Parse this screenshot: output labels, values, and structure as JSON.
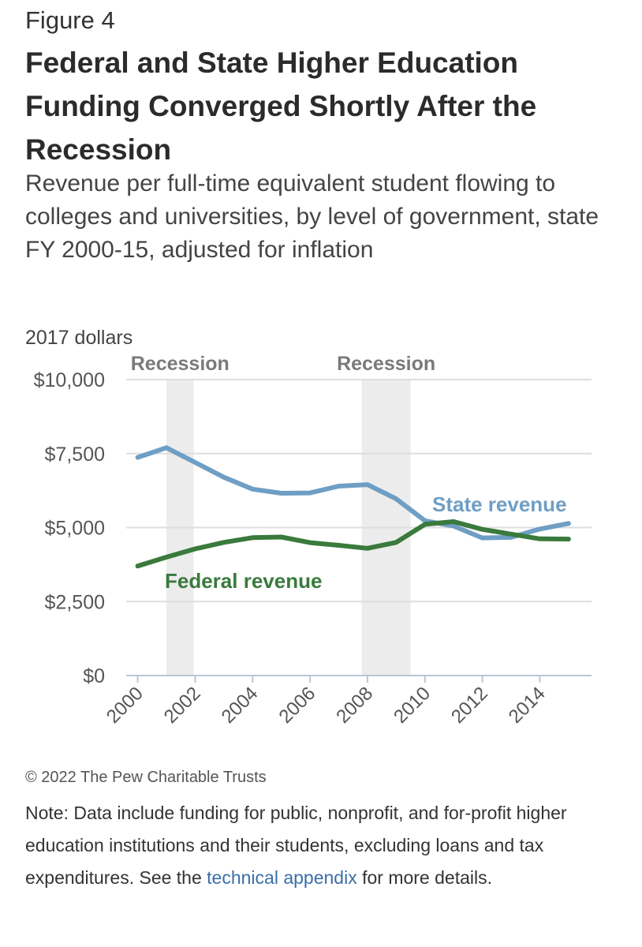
{
  "figure_label": "Figure 4",
  "title": "Federal and State Higher Education Funding Converged Shortly After the Recession",
  "subtitle": "Revenue per full-time equivalent student flowing to colleges and universities, by level of government, state FY 2000-15, adjusted for inflation",
  "unit_label": "2017 dollars",
  "copyright": "© 2022 The Pew Charitable Trusts",
  "note": {
    "before": "Note: Data include funding for public, nonprofit, and for-profit higher education institutions and their students, excluding loans and tax expenditures. See the ",
    "link": "technical appendix",
    "after": " for more details."
  },
  "chart_data": {
    "type": "line",
    "x": [
      2000,
      2001,
      2002,
      2003,
      2004,
      2005,
      2006,
      2007,
      2008,
      2009,
      2010,
      2011,
      2012,
      2013,
      2014,
      2015
    ],
    "series": [
      {
        "name": "State revenue",
        "color": "#6f9ec4",
        "values": [
          7370,
          7700,
          7200,
          6700,
          6300,
          6160,
          6170,
          6400,
          6450,
          5970,
          5230,
          5050,
          4650,
          4670,
          4950,
          5140
        ]
      },
      {
        "name": "Federal revenue",
        "color": "#3a7a3c",
        "values": [
          3700,
          4000,
          4280,
          4500,
          4660,
          4680,
          4490,
          4400,
          4300,
          4500,
          5110,
          5200,
          4940,
          4780,
          4620,
          4610
        ]
      }
    ],
    "xlim": [
      1999.6,
      2015.8
    ],
    "ylim": [
      0,
      10000
    ],
    "y_ticks": [
      0,
      2500,
      5000,
      7500,
      10000
    ],
    "y_tick_labels": [
      "$0",
      "$2,500",
      "$5,000",
      "$7,500",
      "$10,000"
    ],
    "x_ticks": [
      2000,
      2002,
      2004,
      2006,
      2008,
      2010,
      2012,
      2014
    ],
    "x_tick_labels": [
      "2000",
      "2002",
      "2004",
      "2006",
      "2008",
      "2010",
      "2012",
      "2014"
    ],
    "recessions": [
      {
        "label": "Recession",
        "start": 2001.0,
        "end": 2001.95
      },
      {
        "label": "Recession",
        "start": 2007.8,
        "end": 2009.5
      }
    ],
    "grid": true,
    "xlabel": "",
    "ylabel": ""
  }
}
